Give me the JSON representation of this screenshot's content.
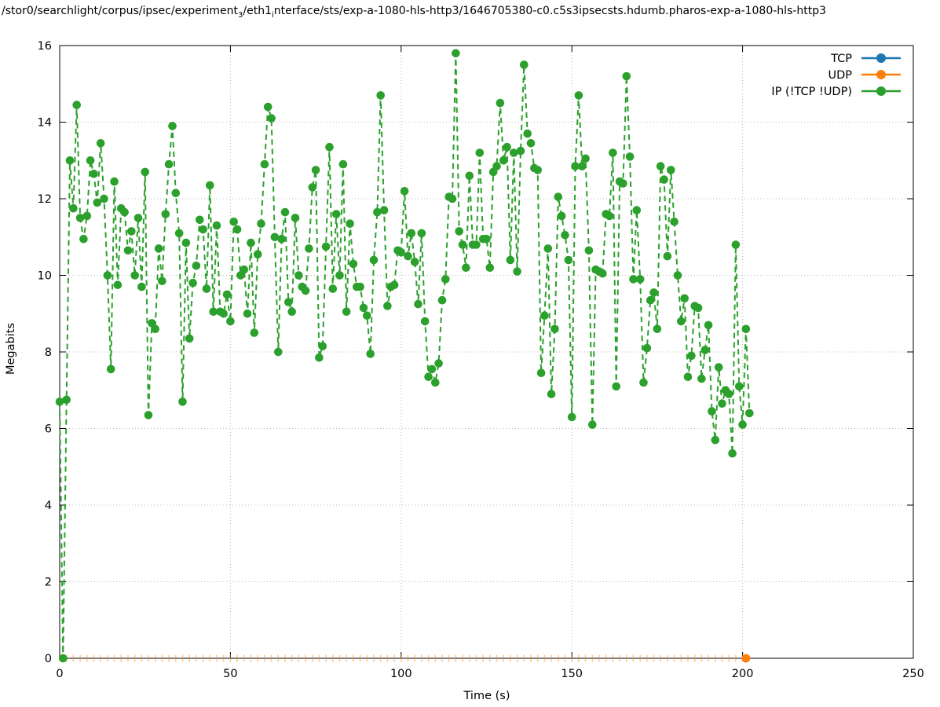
{
  "title": {
    "part1": "/stor0/searchlight/corpus/ipsec/experiment",
    "sub1": "3",
    "part2": "/eth1",
    "sub2": "i",
    "part3": "nterface/sts/exp-a-1080-hls-http3/1646705380-c0.c5s3ipsecsts.hdumb.pharos-exp-a-1080-hls-http3"
  },
  "chart_data": {
    "type": "line",
    "title": "/stor0/searchlight/corpus/ipsec/experiment_3/eth1_interface/sts/exp-a-1080-hls-http3/1646705380-c0.c5s3ipsecsts.hdumb.pharos-exp-a-1080-hls-http3",
    "xlabel": "Time (s)",
    "ylabel": "Megabits",
    "xlim": [
      0,
      250
    ],
    "ylim": [
      0,
      16
    ],
    "xticks": [
      0,
      50,
      100,
      150,
      200,
      250
    ],
    "yticks": [
      0,
      2,
      4,
      6,
      8,
      10,
      12,
      14,
      16
    ],
    "grid": true,
    "grid_style": "dotted",
    "legend_position": "top-right-inside",
    "colors": {
      "tcp": "#1f77b4",
      "udp": "#ff7f0e",
      "ip": "#2ca02c"
    },
    "series": [
      {
        "name": "TCP",
        "color": "#1f77b4",
        "style": "dashed-linespoints",
        "x": [],
        "y": [],
        "note": "legend entry only, no visible data points"
      },
      {
        "name": "UDP",
        "color": "#ff7f0e",
        "style": "tick-markers-at-zero",
        "x_start": 0,
        "x_end": 201,
        "tick_step": 2,
        "value": 0,
        "endpoint_marker": true
      },
      {
        "name": "IP (!TCP  !UDP)",
        "color": "#2ca02c",
        "style": "dashed-linespoints",
        "x_start": 0,
        "x_step": 1,
        "y": [
          6.7,
          0.0,
          6.75,
          13.0,
          11.75,
          14.45,
          11.5,
          10.95,
          11.55,
          13.0,
          12.65,
          11.9,
          13.45,
          12.0,
          10.0,
          7.55,
          12.45,
          9.75,
          11.75,
          11.65,
          10.65,
          11.15,
          10.0,
          11.5,
          9.7,
          12.7,
          6.35,
          8.75,
          8.6,
          10.7,
          9.85,
          11.6,
          12.9,
          13.9,
          12.15,
          11.1,
          6.7,
          10.85,
          8.35,
          9.8,
          10.25,
          11.45,
          11.2,
          9.65,
          12.35,
          9.05,
          11.3,
          9.05,
          9.0,
          9.5,
          8.8,
          11.4,
          11.2,
          10.0,
          10.15,
          9.0,
          10.85,
          8.5,
          10.55,
          11.35,
          12.9,
          14.4,
          14.1,
          11.0,
          8.0,
          10.95,
          11.65,
          9.3,
          9.05,
          11.5,
          10.0,
          9.7,
          9.6,
          10.7,
          12.3,
          12.75,
          7.85,
          8.15,
          10.75,
          13.35,
          9.65,
          11.6,
          10.0,
          12.9,
          9.05,
          11.35,
          10.3,
          9.7,
          9.7,
          9.15,
          8.95,
          7.95,
          10.4,
          11.65,
          14.7,
          11.7,
          9.2,
          9.7,
          9.75,
          10.65,
          10.6,
          12.2,
          10.5,
          11.1,
          10.35,
          9.25,
          11.1,
          8.8,
          7.35,
          7.55,
          7.2,
          7.7,
          9.35,
          9.9,
          12.05,
          12.0,
          15.8,
          11.15,
          10.8,
          10.2,
          12.6,
          10.8,
          10.8,
          13.2,
          10.95,
          10.95,
          10.2,
          12.7,
          12.85,
          14.5,
          13.0,
          13.35,
          10.4,
          13.2,
          10.1,
          13.25,
          15.5,
          13.7,
          13.45,
          12.8,
          12.75,
          7.45,
          8.95,
          10.7,
          6.9,
          8.6,
          12.05,
          11.55,
          11.05,
          10.4,
          6.3,
          12.85,
          14.7,
          12.85,
          13.05,
          10.65,
          6.1,
          10.15,
          10.1,
          10.05,
          11.6,
          11.55,
          13.2,
          7.1,
          12.45,
          12.4,
          15.2,
          13.1,
          9.9,
          11.7,
          9.9,
          7.2,
          8.1,
          9.35,
          9.55,
          8.6,
          12.85,
          12.5,
          10.5,
          12.75,
          11.4,
          10.0,
          8.8,
          9.4,
          7.35,
          7.9,
          9.2,
          9.15,
          7.3,
          8.05,
          8.7,
          6.45,
          5.7,
          7.6,
          6.65,
          7.0,
          6.9,
          5.35,
          10.8,
          7.1,
          6.1,
          8.6,
          6.4
        ]
      }
    ],
    "legend": [
      {
        "label": "TCP",
        "color": "#1f77b4"
      },
      {
        "label": "UDP",
        "color": "#ff7f0e"
      },
      {
        "label": "IP (!TCP  !UDP)",
        "color": "#2ca02c"
      }
    ]
  }
}
